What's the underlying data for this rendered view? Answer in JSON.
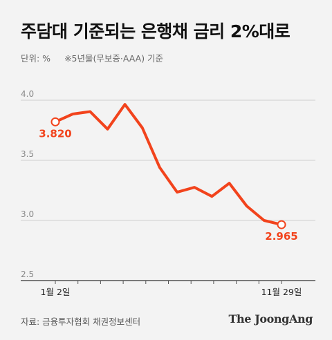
{
  "header": {
    "title": "주담대 기준되는 은행채 금리 2%대로",
    "unit": "단위: %",
    "note": "※5년물(무보증·AAA) 기준"
  },
  "footer": {
    "source": "자료: 금융투자협회 채권정보센터",
    "brand": "The JoongAng"
  },
  "colors": {
    "line": "#f2431c",
    "grid": "#cfcfcf",
    "axis_text": "#888888",
    "background": "#f3f3f3"
  },
  "chart_data": {
    "type": "line",
    "title": "주담대 기준되는 은행채 금리 2%대로",
    "ylabel": "단위: %",
    "ylim": [
      2.5,
      4.0
    ],
    "yticks": [
      "2.5",
      "3.0",
      "3.5",
      "4.0"
    ],
    "x_tick_labels": [
      {
        "index": 0,
        "label": "1월 2일"
      },
      {
        "index": 15,
        "label": "11월 29일"
      }
    ],
    "x_minor_ticks": 10,
    "grid": true,
    "series": [
      {
        "values": [
          3.82,
          3.885,
          3.905,
          3.76,
          3.965,
          3.77,
          3.44,
          3.235,
          3.275,
          3.2,
          3.31,
          3.12,
          3.0,
          2.965
        ]
      }
    ],
    "annotations": [
      {
        "index": 0,
        "label": "3.820"
      },
      {
        "index": 13,
        "label": "2.965"
      }
    ]
  }
}
